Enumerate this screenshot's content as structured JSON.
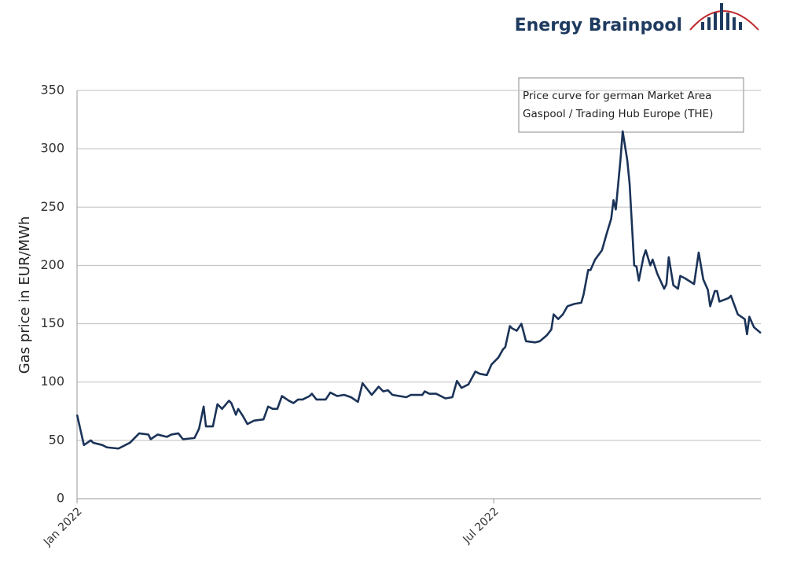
{
  "chart_data": {
    "type": "line",
    "brand": "Energy Brainpool",
    "y_label": "Gas price in EUR/MWh",
    "annotation": [
      "Price curve  for german Market Area",
      "Gaspool / Trading Hub Europe (THE)"
    ],
    "x": [
      0,
      3,
      6,
      7,
      11,
      13,
      18,
      23,
      27,
      31,
      32,
      35,
      39,
      41,
      44,
      46,
      51,
      53,
      55,
      56,
      59,
      61,
      63,
      66,
      67,
      69,
      70,
      72,
      74,
      77,
      81,
      83,
      85,
      87,
      89,
      92,
      94,
      96,
      98,
      101,
      102,
      104,
      108,
      110,
      113,
      116,
      119,
      122,
      124,
      126,
      128,
      131,
      133,
      135,
      137,
      143,
      145,
      150,
      151,
      153,
      156,
      160,
      163,
      165,
      167,
      170,
      173,
      175,
      178,
      180,
      183,
      185,
      186,
      188,
      189,
      191,
      193,
      195,
      199,
      201,
      204,
      206,
      207,
      209,
      211,
      213,
      216,
      219,
      220,
      222,
      223,
      225,
      228,
      230,
      232,
      233,
      234,
      236,
      237,
      239,
      240,
      242,
      243,
      244,
      246,
      247,
      249,
      250,
      252,
      255,
      256,
      257,
      259,
      261,
      262,
      264,
      268,
      270,
      272,
      274,
      275,
      277,
      278,
      279,
      283,
      284,
      287,
      290,
      291,
      292,
      294,
      297
    ],
    "series": [
      {
        "name": "Gas price",
        "color": "#1b3358",
        "values": [
          72,
          46,
          50,
          48,
          46,
          44,
          43,
          48,
          56,
          55,
          51,
          55,
          53,
          55,
          56,
          51,
          52,
          60,
          79,
          62,
          62,
          81,
          77,
          84,
          82,
          72,
          77,
          71,
          64,
          67,
          68,
          79,
          77,
          77,
          88,
          84,
          82,
          85,
          85,
          88,
          90,
          85,
          85,
          91,
          88,
          89,
          87,
          83,
          99,
          94,
          89,
          96,
          92,
          93,
          89,
          87,
          89,
          89,
          92,
          90,
          90,
          86,
          87,
          101,
          95,
          98,
          109,
          107,
          106,
          115,
          121,
          128,
          130,
          148,
          146,
          144,
          150,
          135,
          134,
          135,
          140,
          145,
          158,
          154,
          158,
          165,
          167,
          168,
          175,
          196,
          196,
          205,
          213,
          227,
          240,
          256,
          248,
          290,
          315,
          290,
          270,
          200,
          199,
          187,
          207,
          213,
          200,
          205,
          193,
          180,
          184,
          207,
          183,
          180,
          191,
          189,
          184,
          211,
          188,
          179,
          165,
          178,
          178,
          169,
          172,
          174,
          158,
          154,
          141,
          156,
          147,
          142
        ]
      }
    ],
    "xlim": [
      0,
      297
    ],
    "xticks": [
      {
        "value": 0,
        "label": "Jan 2022"
      },
      {
        "value": 181,
        "label": "Jul 2022"
      }
    ],
    "ylim": [
      0,
      350
    ],
    "yticks": [
      0,
      50,
      100,
      150,
      200,
      250,
      300,
      350
    ],
    "grid": true
  }
}
